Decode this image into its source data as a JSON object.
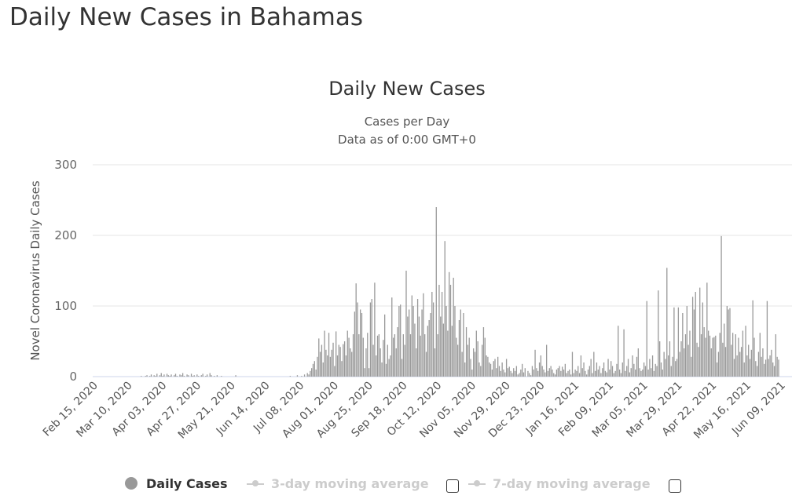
{
  "page": {
    "title": "Daily New Cases in Bahamas"
  },
  "chart_data": {
    "type": "bar",
    "title": "Daily New Cases",
    "subtitle": [
      "Cases per Day",
      "Data as of 0:00 GMT+0"
    ],
    "ylabel": "Novel Coronavirus Daily Cases",
    "xlabel": "",
    "ylim": [
      0,
      300
    ],
    "yticks": [
      0,
      100,
      200,
      300
    ],
    "grid": true,
    "start_date": "Feb 15, 2020",
    "x_interval": "daily",
    "xtick_labels": [
      "Feb 15, 2020",
      "Mar 10, 2020",
      "Apr 03, 2020",
      "Apr 27, 2020",
      "May 21, 2020",
      "Jun 14, 2020",
      "Jul 08, 2020",
      "Aug 01, 2020",
      "Aug 25, 2020",
      "Sep 18, 2020",
      "Oct 12, 2020",
      "Nov 05, 2020",
      "Nov 29, 2020",
      "Dec 23, 2020",
      "Jan 16, 2021",
      "Feb 09, 2021",
      "Mar 05, 2021",
      "Mar 29, 2021",
      "Apr 22, 2021",
      "May 16, 2021",
      "Jun 09, 2021"
    ],
    "xtick_step_days": 24,
    "bar_color": "#999999",
    "series": [
      {
        "name": "Daily Cases",
        "values": [
          0,
          0,
          0,
          0,
          0,
          0,
          0,
          0,
          0,
          0,
          0,
          0,
          0,
          0,
          0,
          0,
          0,
          0,
          0,
          0,
          0,
          0,
          0,
          0,
          0,
          0,
          0,
          0,
          0,
          0,
          1,
          0,
          0,
          1,
          2,
          0,
          1,
          3,
          0,
          2,
          1,
          4,
          0,
          2,
          5,
          1,
          3,
          0,
          4,
          2,
          1,
          3,
          0,
          2,
          4,
          1,
          0,
          3,
          2,
          5,
          1,
          0,
          3,
          2,
          0,
          4,
          1,
          2,
          0,
          3,
          1,
          0,
          2,
          4,
          0,
          1,
          3,
          0,
          5,
          2,
          0,
          1,
          0,
          2,
          0,
          0,
          1,
          0,
          0,
          0,
          0,
          0,
          0,
          0,
          0,
          0,
          2,
          0,
          0,
          0,
          0,
          0,
          0,
          0,
          0,
          0,
          0,
          0,
          0,
          0,
          0,
          0,
          0,
          0,
          0,
          0,
          0,
          0,
          0,
          0,
          0,
          0,
          0,
          0,
          0,
          0,
          0,
          0,
          0,
          0,
          0,
          0,
          0,
          0,
          1,
          0,
          0,
          0,
          0,
          2,
          0,
          0,
          1,
          0,
          3,
          0,
          5,
          3,
          8,
          12,
          18,
          22,
          10,
          28,
          54,
          35,
          45,
          20,
          65,
          38,
          30,
          62,
          28,
          38,
          48,
          15,
          64,
          30,
          45,
          42,
          22,
          46,
          50,
          30,
          65,
          55,
          40,
          35,
          60,
          92,
          132,
          105,
          60,
          95,
          90,
          55,
          12,
          40,
          62,
          12,
          105,
          110,
          45,
          133,
          30,
          58,
          60,
          40,
          20,
          52,
          88,
          18,
          45,
          25,
          30,
          112,
          55,
          60,
          40,
          70,
          100,
          102,
          25,
          60,
          45,
          150,
          85,
          95,
          60,
          115,
          100,
          75,
          40,
          110,
          85,
          58,
          95,
          118,
          60,
          35,
          72,
          80,
          90,
          120,
          105,
          40,
          240,
          60,
          130,
          85,
          120,
          75,
          192,
          100,
          65,
          148,
          130,
          72,
          140,
          100,
          55,
          45,
          80,
          95,
          35,
          90,
          20,
          70,
          45,
          55,
          25,
          10,
          40,
          35,
          65,
          50,
          20,
          15,
          45,
          70,
          55,
          30,
          28,
          20,
          18,
          10,
          22,
          25,
          12,
          28,
          15,
          8,
          20,
          10,
          6,
          25,
          12,
          14,
          8,
          5,
          12,
          8,
          15,
          3,
          5,
          10,
          18,
          6,
          12,
          0,
          8,
          5,
          2,
          15,
          10,
          38,
          12,
          8,
          20,
          30,
          15,
          10,
          6,
          45,
          8,
          12,
          15,
          10,
          5,
          3,
          10,
          12,
          15,
          8,
          14,
          10,
          18,
          5,
          8,
          10,
          3,
          35,
          5,
          10,
          8,
          15,
          5,
          30,
          12,
          20,
          8,
          3,
          10,
          15,
          25,
          5,
          35,
          8,
          20,
          10,
          15,
          5,
          12,
          20,
          8,
          6,
          25,
          10,
          22,
          15,
          5,
          8,
          18,
          72,
          10,
          5,
          20,
          67,
          8,
          15,
          25,
          6,
          12,
          30,
          18,
          10,
          28,
          40,
          12,
          8,
          10,
          20,
          15,
          107,
          10,
          25,
          12,
          30,
          8,
          18,
          15,
          122,
          50,
          20,
          10,
          35,
          25,
          154,
          30,
          50,
          15,
          28,
          98,
          22,
          25,
          98,
          35,
          50,
          90,
          40,
          60,
          100,
          45,
          65,
          28,
          113,
          95,
          120,
          48,
          42,
          126,
          60,
          105,
          70,
          55,
          133,
          65,
          58,
          40,
          55,
          56,
          58,
          20,
          35,
          62,
          199,
          48,
          75,
          42,
          100,
          95,
          97,
          45,
          62,
          25,
          60,
          30,
          55,
          35,
          42,
          65,
          20,
          72,
          30,
          45,
          25,
          38,
          108,
          55,
          22,
          15,
          35,
          62,
          28,
          40,
          18,
          24,
          107,
          25,
          30,
          38,
          20,
          15,
          60,
          28,
          24
        ]
      }
    ],
    "legend": {
      "placement": "bottom",
      "items": [
        {
          "label": "Daily Cases",
          "enabled": true,
          "color": "#999999"
        },
        {
          "label": "3-day moving average",
          "enabled": false,
          "color": "#cccccc"
        },
        {
          "label": "7-day moving average",
          "enabled": false,
          "color": "#cccccc"
        }
      ]
    }
  }
}
